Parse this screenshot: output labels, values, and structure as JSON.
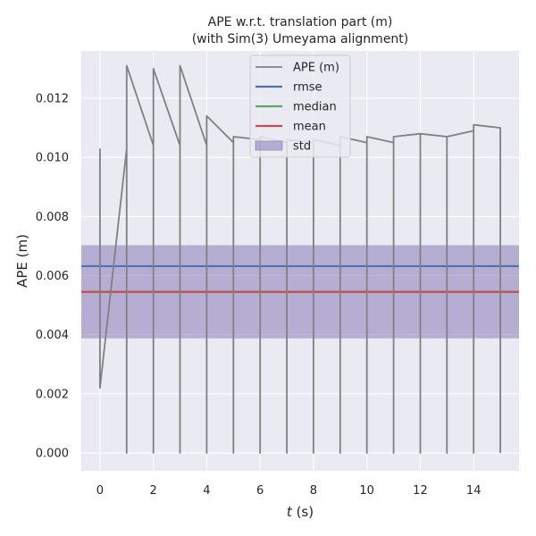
{
  "chart_data": {
    "type": "line",
    "title": "APE w.r.t. translation part (m)",
    "subtitle": "(with Sim(3) Umeyama alignment)",
    "xlabel_italic": "t",
    "xlabel_rest": " (s)",
    "ylabel": "APE (m)",
    "xlim": [
      -0.7,
      15.7
    ],
    "ylim": [
      -0.0006,
      0.0136
    ],
    "xticks": [
      0,
      2,
      4,
      6,
      8,
      10,
      12,
      14
    ],
    "xtick_labels": [
      "0",
      "2",
      "4",
      "6",
      "8",
      "10",
      "12",
      "14"
    ],
    "yticks": [
      0.0,
      0.002,
      0.004,
      0.006,
      0.008,
      0.01,
      0.012
    ],
    "ytick_labels": [
      "0.000",
      "0.002",
      "0.004",
      "0.006",
      "0.008",
      "0.010",
      "0.012"
    ],
    "grid": true,
    "legend_placement": "upper-center",
    "legend": [
      "APE (m)",
      "rmse",
      "median",
      "mean",
      "std"
    ],
    "series": [
      {
        "name": "APE (m)",
        "color": "#808080",
        "x": [
          0,
          0,
          1,
          1,
          1,
          2,
          2,
          2,
          3,
          3,
          3,
          4,
          4,
          4,
          5,
          5,
          5,
          6,
          6,
          6,
          7,
          7,
          7,
          8,
          8,
          8,
          9,
          9,
          9,
          10,
          10,
          10,
          11,
          11,
          11,
          12,
          12,
          12,
          13,
          13,
          13,
          14,
          14,
          14,
          15,
          15
        ],
        "y": [
          0.0103,
          0.0022,
          0.0103,
          0.0,
          0.0131,
          0.0104,
          0.0,
          0.013,
          0.0104,
          0.0,
          0.0131,
          0.0104,
          0.0,
          0.0114,
          0.0105,
          0.0,
          0.0107,
          0.0106,
          0.0,
          0.0107,
          0.0105,
          0.0,
          0.0106,
          0.0105,
          0.0,
          0.0106,
          0.0104,
          0.0,
          0.0107,
          0.0105,
          0.0,
          0.0107,
          0.0105,
          0.0,
          0.0107,
          0.0108,
          0.0,
          0.0108,
          0.0107,
          0.0,
          0.0107,
          0.0109,
          0.0,
          0.0111,
          0.011,
          0.0
        ]
      }
    ],
    "stats": {
      "rmse": {
        "value": 0.00632,
        "color": "#4c72b0"
      },
      "median": {
        "value": 0.00545,
        "color": "#55a868"
      },
      "mean": {
        "value": 0.00545,
        "color": "#c44e52"
      },
      "std": {
        "lower": 0.00388,
        "upper": 0.00703,
        "color": "#8172b2"
      }
    }
  }
}
